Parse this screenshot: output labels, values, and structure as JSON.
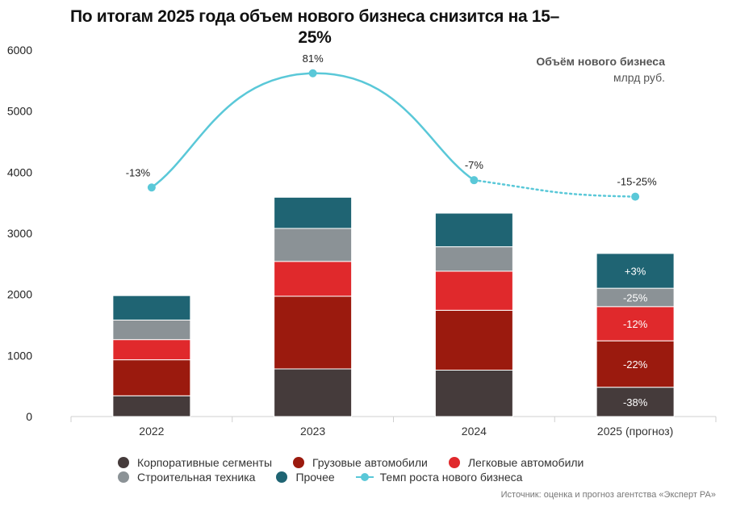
{
  "title": "По итогам 2025 года объем нового бизнеса снизится на 15–25%",
  "units": {
    "line1": "Объём нового бизнеса",
    "line2": "млрд руб."
  },
  "source": "Источник: оценка и прогноз агентства «Эксперт РА»",
  "legend": {
    "row1": [
      {
        "label": "Корпоративные сегменты",
        "color": "#453b3b"
      },
      {
        "label": "Грузовые автомобили",
        "color": "#9b1a0e"
      },
      {
        "label": "Легковые автомобили",
        "color": "#e0292c"
      }
    ],
    "row2": [
      {
        "label": "Строительная техника",
        "color": "#8b9296"
      },
      {
        "label": "Прочее",
        "color": "#1f6473"
      },
      {
        "label": "Темп роста нового бизнеса",
        "color": "#5ac8d8"
      }
    ]
  },
  "chart_data": {
    "type": "bar",
    "stacked": true,
    "categories": [
      "2022",
      "2023",
      "2024",
      "2025 (прогноз)"
    ],
    "ylim": [
      0,
      6000
    ],
    "yticks": [
      "0",
      "1000",
      "2000",
      "3000",
      "4000",
      "5000",
      "6000"
    ],
    "series": [
      {
        "name": "Корпоративные сегменты",
        "color": "#453b3b",
        "values": [
          340,
          780,
          760,
          480
        ],
        "labels": [
          "",
          "",
          "",
          "-38%"
        ]
      },
      {
        "name": "Грузовые автомобили",
        "color": "#9b1a0e",
        "values": [
          590,
          1190,
          980,
          760
        ],
        "labels": [
          "",
          "",
          "",
          "-22%"
        ]
      },
      {
        "name": "Легковые автомобили",
        "color": "#e0292c",
        "values": [
          330,
          570,
          640,
          560
        ],
        "labels": [
          "",
          "",
          "",
          "-12%"
        ]
      },
      {
        "name": "Строительная техника",
        "color": "#8b9296",
        "values": [
          320,
          540,
          400,
          300
        ],
        "labels": [
          "",
          "",
          "",
          "-25%"
        ]
      },
      {
        "name": "Прочее",
        "color": "#1f6473",
        "values": [
          400,
          510,
          550,
          570
        ],
        "labels": [
          "",
          "",
          "",
          "+3%"
        ]
      }
    ],
    "growth_line": {
      "name": "Темп роста нового бизнеса",
      "color": "#5ac8d8",
      "labels": [
        "-13%",
        "81%",
        "-7%",
        "-15-25%"
      ],
      "positions": [
        3750,
        5620,
        3870,
        3600
      ],
      "forecast_from_index": 2
    }
  }
}
